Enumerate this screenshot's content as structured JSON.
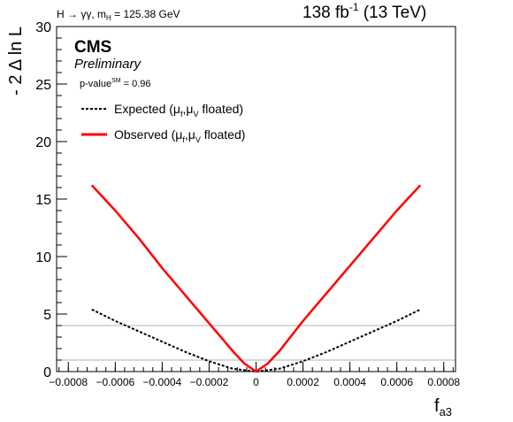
{
  "header": {
    "process": "H → γγ, m",
    "process_sub": "H",
    "mass_text": " = 125.38 GeV",
    "lumi_value": "138 fb",
    "lumi_sup": "-1",
    "lumi_energy": " (13 TeV)"
  },
  "labels": {
    "experiment": "CMS",
    "status": "Preliminary",
    "pvalue_prefix": "p-value",
    "pvalue_sup": "SM",
    "pvalue_value": " = 0.96"
  },
  "legend": {
    "expected": "Expected (μ",
    "observed": "Observed (μ",
    "sub_f": "f",
    "sub_v": "V",
    "mu_mid": ",μ",
    "floated_expected": " floated)",
    "floated_observed": " floated)"
  },
  "chart_data": {
    "type": "line",
    "title": "",
    "xlabel": "f",
    "xlabel_sub": "a3",
    "ylabel": "- 2 Δ ln L",
    "xlim": [
      -0.00085,
      0.00085
    ],
    "ylim": [
      0,
      30
    ],
    "x_ticks": [
      -0.0008,
      -0.0006,
      -0.0004,
      -0.0002,
      0,
      0.0002,
      0.0004,
      0.0006,
      0.0008
    ],
    "x_tick_labels": [
      "−0.0008",
      "−0.0006",
      "−0.0004",
      "−0.0002",
      "0",
      "0.0002",
      "0.0004",
      "0.0006",
      "0.0008"
    ],
    "y_ticks": [
      0,
      5,
      10,
      15,
      20,
      25,
      30
    ],
    "y_tick_labels": [
      "0",
      "5",
      "10",
      "15",
      "20",
      "25",
      "30"
    ],
    "reference_lines": [
      1,
      4
    ],
    "grid": false,
    "legend_position": "top-left",
    "series": [
      {
        "name": "Observed",
        "color": "#ff0000",
        "style": "solid",
        "x": [
          -0.0007,
          -0.0006,
          -0.0005,
          -0.0004,
          -0.0003,
          -0.0002,
          -0.0001,
          -5e-05,
          0,
          5e-05,
          0.0001,
          0.0002,
          0.0003,
          0.0004,
          0.0005,
          0.0006,
          0.0007
        ],
        "y": [
          16.2,
          14.0,
          11.6,
          9.0,
          6.6,
          4.2,
          1.8,
          0.7,
          0.0,
          0.7,
          1.8,
          4.4,
          6.8,
          9.2,
          11.6,
          14.0,
          16.2
        ]
      },
      {
        "name": "Expected",
        "color": "#000000",
        "style": "dashed",
        "x": [
          -0.0007,
          -0.0006,
          -0.0005,
          -0.0004,
          -0.0003,
          -0.0002,
          -0.0001,
          0,
          0.0001,
          0.0002,
          0.0003,
          0.0004,
          0.0005,
          0.0006,
          0.0007
        ],
        "y": [
          5.4,
          4.4,
          3.5,
          2.6,
          1.7,
          0.9,
          0.25,
          0.0,
          0.25,
          0.9,
          1.7,
          2.6,
          3.5,
          4.4,
          5.4
        ]
      }
    ]
  }
}
